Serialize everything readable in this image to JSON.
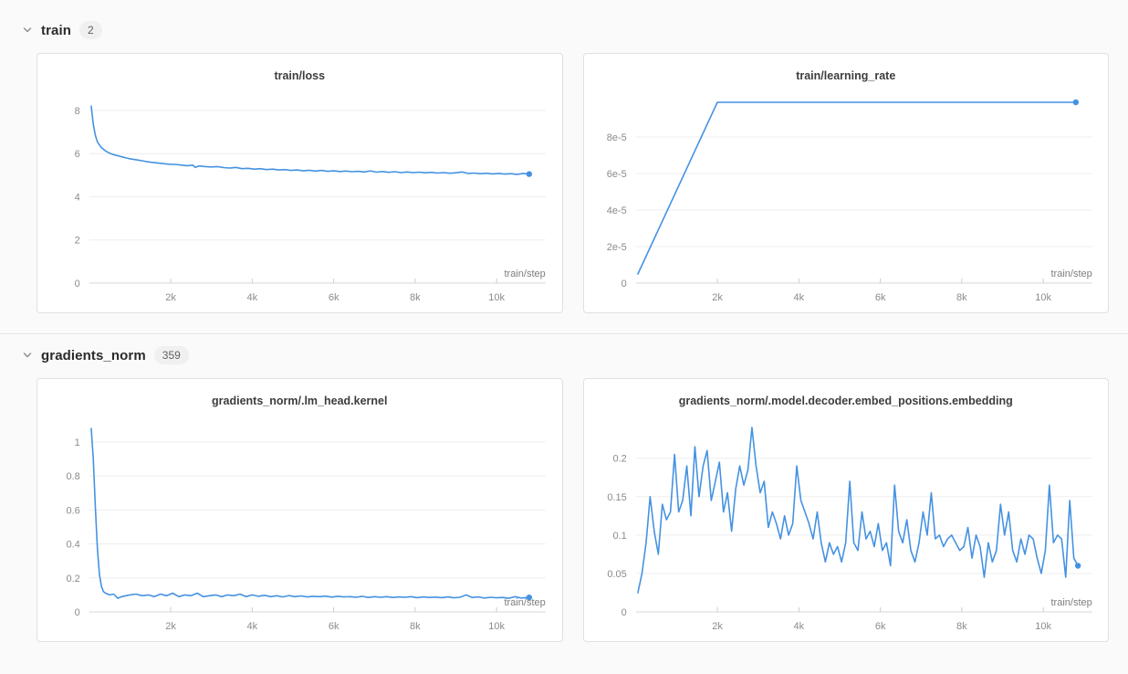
{
  "page": {
    "accent_color": "#4592e2",
    "grid_color": "#ededed",
    "axis_color": "#d7d7d7",
    "tick_text_color": "#8b8b8b"
  },
  "sections": [
    {
      "name": "train",
      "count": "2",
      "chart_indexes": [
        0,
        1
      ]
    },
    {
      "name": "gradients_norm",
      "count": "359",
      "chart_indexes": [
        2,
        3
      ]
    }
  ],
  "chart_data": [
    {
      "type": "line",
      "title": "train/loss",
      "xlabel": "train/step",
      "ylabel": "",
      "xlim": [
        0,
        11200
      ],
      "ylim": [
        0,
        8.8
      ],
      "grid": true,
      "legend": "none",
      "xticks": [
        {
          "value": 2000,
          "label": "2k"
        },
        {
          "value": 4000,
          "label": "4k"
        },
        {
          "value": 6000,
          "label": "6k"
        },
        {
          "value": 8000,
          "label": "8k"
        },
        {
          "value": 10000,
          "label": "10k"
        }
      ],
      "yticks": [
        {
          "value": 0,
          "label": "0"
        },
        {
          "value": 2,
          "label": "2"
        },
        {
          "value": 4,
          "label": "4"
        },
        {
          "value": 6,
          "label": "6"
        },
        {
          "value": 8,
          "label": "8"
        }
      ],
      "x": [
        50,
        100,
        150,
        200,
        250,
        300,
        400,
        500,
        600,
        700,
        800,
        900,
        1000,
        1100,
        1200,
        1300,
        1400,
        1500,
        1650,
        1800,
        1950,
        2100,
        2250,
        2400,
        2550,
        2600,
        2700,
        2850,
        3000,
        3150,
        3300,
        3450,
        3600,
        3750,
        3900,
        4050,
        4200,
        4350,
        4500,
        4650,
        4800,
        4950,
        5100,
        5250,
        5400,
        5550,
        5700,
        5850,
        6000,
        6150,
        6300,
        6450,
        6600,
        6750,
        6900,
        7050,
        7200,
        7350,
        7500,
        7650,
        7800,
        7950,
        8100,
        8250,
        8400,
        8550,
        8700,
        8850,
        9000,
        9150,
        9300,
        9450,
        9600,
        9750,
        9900,
        10050,
        10200,
        10350,
        10500,
        10650,
        10800
      ],
      "values": [
        8.2,
        7.35,
        6.85,
        6.55,
        6.4,
        6.28,
        6.12,
        6.02,
        5.95,
        5.9,
        5.85,
        5.8,
        5.76,
        5.73,
        5.7,
        5.67,
        5.63,
        5.6,
        5.57,
        5.54,
        5.51,
        5.5,
        5.47,
        5.44,
        5.46,
        5.36,
        5.43,
        5.4,
        5.38,
        5.4,
        5.35,
        5.33,
        5.36,
        5.3,
        5.32,
        5.28,
        5.3,
        5.26,
        5.28,
        5.24,
        5.26,
        5.22,
        5.24,
        5.2,
        5.23,
        5.19,
        5.22,
        5.18,
        5.2,
        5.17,
        5.19,
        5.16,
        5.18,
        5.15,
        5.2,
        5.14,
        5.17,
        5.13,
        5.16,
        5.12,
        5.15,
        5.12,
        5.14,
        5.11,
        5.13,
        5.1,
        5.12,
        5.09,
        5.11,
        5.15,
        5.08,
        5.1,
        5.07,
        5.09,
        5.06,
        5.08,
        5.05,
        5.07,
        5.04,
        5.08,
        5.05
      ]
    },
    {
      "type": "line",
      "title": "train/learning_rate",
      "xlabel": "train/step",
      "ylabel": "",
      "xlim": [
        0,
        11200
      ],
      "ylim": [
        0,
        0.000104
      ],
      "grid": true,
      "legend": "none",
      "xticks": [
        {
          "value": 2000,
          "label": "2k"
        },
        {
          "value": 4000,
          "label": "4k"
        },
        {
          "value": 6000,
          "label": "6k"
        },
        {
          "value": 8000,
          "label": "8k"
        },
        {
          "value": 10000,
          "label": "10k"
        }
      ],
      "yticks": [
        {
          "value": 0,
          "label": "0"
        },
        {
          "value": 2e-05,
          "label": "2e-5"
        },
        {
          "value": 4e-05,
          "label": "4e-5"
        },
        {
          "value": 6e-05,
          "label": "6e-5"
        },
        {
          "value": 8e-05,
          "label": "8e-5"
        }
      ],
      "x": [
        50,
        2000,
        10800
      ],
      "values": [
        5e-06,
        9.9e-05,
        9.9e-05
      ]
    },
    {
      "type": "line",
      "title": "gradients_norm/.lm_head.kernel",
      "xlabel": "train/step",
      "ylabel": "",
      "xlim": [
        0,
        11200
      ],
      "ylim": [
        0,
        1.14
      ],
      "grid": true,
      "legend": "none",
      "xticks": [
        {
          "value": 2000,
          "label": "2k"
        },
        {
          "value": 4000,
          "label": "4k"
        },
        {
          "value": 6000,
          "label": "6k"
        },
        {
          "value": 8000,
          "label": "8k"
        },
        {
          "value": 10000,
          "label": "10k"
        }
      ],
      "yticks": [
        {
          "value": 0,
          "label": "0"
        },
        {
          "value": 0.2,
          "label": "0.2"
        },
        {
          "value": 0.4,
          "label": "0.4"
        },
        {
          "value": 0.6,
          "label": "0.6"
        },
        {
          "value": 0.8,
          "label": "0.8"
        },
        {
          "value": 1,
          "label": "1"
        }
      ],
      "x": [
        50,
        100,
        150,
        200,
        250,
        300,
        350,
        400,
        500,
        600,
        700,
        800,
        900,
        1000,
        1150,
        1300,
        1450,
        1600,
        1750,
        1900,
        2050,
        2200,
        2350,
        2500,
        2650,
        2800,
        2950,
        3100,
        3250,
        3400,
        3550,
        3700,
        3850,
        4000,
        4150,
        4300,
        4450,
        4600,
        4750,
        4900,
        5050,
        5200,
        5350,
        5500,
        5650,
        5800,
        5950,
        6100,
        6250,
        6400,
        6550,
        6700,
        6850,
        7000,
        7150,
        7300,
        7450,
        7600,
        7750,
        7900,
        8050,
        8200,
        8350,
        8500,
        8650,
        8800,
        8950,
        9100,
        9250,
        9400,
        9550,
        9700,
        9850,
        10000,
        10150,
        10300,
        10450,
        10600,
        10800
      ],
      "values": [
        1.08,
        0.9,
        0.62,
        0.38,
        0.22,
        0.15,
        0.12,
        0.11,
        0.1,
        0.105,
        0.08,
        0.09,
        0.095,
        0.1,
        0.105,
        0.095,
        0.1,
        0.09,
        0.105,
        0.095,
        0.11,
        0.09,
        0.1,
        0.095,
        0.11,
        0.09,
        0.095,
        0.1,
        0.09,
        0.1,
        0.095,
        0.105,
        0.09,
        0.1,
        0.092,
        0.098,
        0.09,
        0.095,
        0.088,
        0.096,
        0.09,
        0.094,
        0.088,
        0.092,
        0.09,
        0.093,
        0.087,
        0.092,
        0.088,
        0.09,
        0.086,
        0.092,
        0.085,
        0.09,
        0.086,
        0.09,
        0.085,
        0.088,
        0.086,
        0.09,
        0.084,
        0.088,
        0.085,
        0.087,
        0.084,
        0.088,
        0.083,
        0.086,
        0.1,
        0.085,
        0.088,
        0.082,
        0.086,
        0.083,
        0.085,
        0.08,
        0.09,
        0.082,
        0.085
      ]
    },
    {
      "type": "line",
      "title": "gradients_norm/.model.decoder.embed_positions.embedding",
      "xlabel": "train/step",
      "ylabel": "",
      "xlim": [
        0,
        11200
      ],
      "ylim": [
        0,
        0.252
      ],
      "grid": true,
      "legend": "none",
      "xticks": [
        {
          "value": 2000,
          "label": "2k"
        },
        {
          "value": 4000,
          "label": "4k"
        },
        {
          "value": 6000,
          "label": "6k"
        },
        {
          "value": 8000,
          "label": "8k"
        },
        {
          "value": 10000,
          "label": "10k"
        }
      ],
      "yticks": [
        {
          "value": 0,
          "label": "0"
        },
        {
          "value": 0.05,
          "label": "0.05"
        },
        {
          "value": 0.1,
          "label": "0.1"
        },
        {
          "value": 0.15,
          "label": "0.15"
        },
        {
          "value": 0.2,
          "label": "0.2"
        }
      ],
      "x": {
        "start": 50,
        "step": 100
      },
      "values": [
        0.025,
        0.05,
        0.09,
        0.15,
        0.105,
        0.075,
        0.14,
        0.12,
        0.13,
        0.205,
        0.13,
        0.145,
        0.19,
        0.125,
        0.215,
        0.15,
        0.19,
        0.21,
        0.145,
        0.17,
        0.195,
        0.13,
        0.155,
        0.105,
        0.16,
        0.19,
        0.165,
        0.185,
        0.24,
        0.19,
        0.155,
        0.17,
        0.11,
        0.13,
        0.115,
        0.095,
        0.125,
        0.1,
        0.115,
        0.19,
        0.145,
        0.13,
        0.115,
        0.095,
        0.13,
        0.09,
        0.065,
        0.09,
        0.075,
        0.085,
        0.065,
        0.09,
        0.17,
        0.09,
        0.08,
        0.13,
        0.095,
        0.105,
        0.085,
        0.115,
        0.08,
        0.09,
        0.06,
        0.165,
        0.105,
        0.09,
        0.12,
        0.08,
        0.065,
        0.09,
        0.13,
        0.1,
        0.155,
        0.095,
        0.1,
        0.085,
        0.095,
        0.1,
        0.09,
        0.08,
        0.085,
        0.11,
        0.07,
        0.1,
        0.085,
        0.045,
        0.09,
        0.065,
        0.08,
        0.14,
        0.1,
        0.13,
        0.08,
        0.065,
        0.095,
        0.075,
        0.1,
        0.095,
        0.07,
        0.05,
        0.08,
        0.165,
        0.09,
        0.1,
        0.095,
        0.045,
        0.145,
        0.07,
        0.06
      ]
    }
  ]
}
